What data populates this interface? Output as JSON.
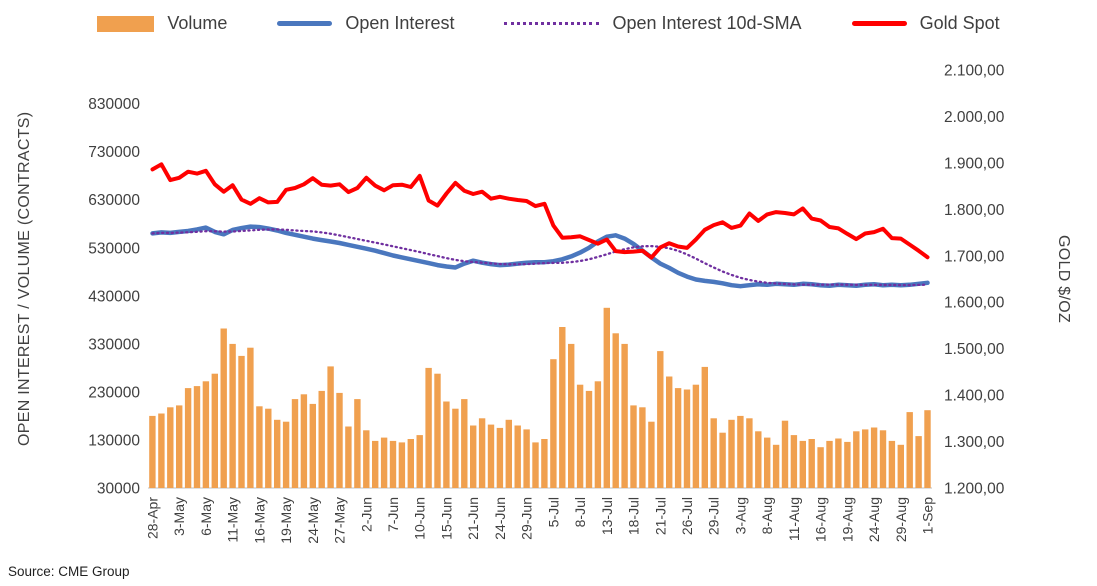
{
  "source": "Source: CME Group",
  "legend": {
    "items": [
      {
        "label": "Volume",
        "swatch": "bar",
        "color": "#F0A04F"
      },
      {
        "label": "Open Interest",
        "swatch": "line",
        "color": "#4A77BE"
      },
      {
        "label": "Open Interest 10d-SMA",
        "swatch": "dotted",
        "color": "#7030A0"
      },
      {
        "label": "Gold Spot",
        "swatch": "line",
        "color": "#FF0000"
      }
    ]
  },
  "chart_data": {
    "type": "combo (bar + line, dual axis)",
    "axes": {
      "left": {
        "title": "OPEN INTEREST / VOLUME (CONTRACTS)",
        "min": 30000,
        "max": 900000,
        "tick_values": [
          30000,
          130000,
          230000,
          330000,
          430000,
          530000,
          630000,
          730000,
          830000
        ],
        "tick_labels": [
          "30000",
          "130000",
          "230000",
          "330000",
          "430000",
          "530000",
          "630000",
          "730000",
          "830000"
        ]
      },
      "right": {
        "title": "GOLD $/OZ",
        "min": 1200,
        "max": 2100,
        "tick_values": [
          1200,
          1300,
          1400,
          1500,
          1600,
          1700,
          1800,
          1900,
          2000,
          2100
        ],
        "tick_labels": [
          "1.200,00",
          "1.300,00",
          "1.400,00",
          "1.500,00",
          "1.600,00",
          "1.700,00",
          "1.800,00",
          "1.900,00",
          "2.000,00",
          "2.100,00"
        ]
      }
    },
    "grid": "off",
    "legend_position": "top",
    "x_label_every": 3,
    "x_tick_labels": [
      "28-Apr",
      "3-May",
      "6-May",
      "11-May",
      "16-May",
      "19-May",
      "24-May",
      "27-May",
      "2-Jun",
      "7-Jun",
      "10-Jun",
      "15-Jun",
      "21-Jun",
      "24-Jun",
      "29-Jun",
      "5-Jul",
      "8-Jul",
      "13-Jul",
      "18-Jul",
      "21-Jul",
      "26-Jul",
      "29-Jul",
      "3-Aug",
      "8-Aug",
      "11-Aug",
      "16-Aug",
      "19-Aug",
      "24-Aug",
      "29-Aug",
      "1-Sep"
    ],
    "x": [
      "28-Apr",
      "29-Apr",
      "2-May",
      "3-May",
      "4-May",
      "5-May",
      "6-May",
      "9-May",
      "10-May",
      "11-May",
      "12-May",
      "13-May",
      "16-May",
      "17-May",
      "18-May",
      "19-May",
      "20-May",
      "23-May",
      "24-May",
      "25-May",
      "26-May",
      "27-May",
      "31-May",
      "1-Jun",
      "2-Jun",
      "3-Jun",
      "6-Jun",
      "7-Jun",
      "8-Jun",
      "9-Jun",
      "10-Jun",
      "13-Jun",
      "14-Jun",
      "15-Jun",
      "16-Jun",
      "17-Jun",
      "21-Jun",
      "22-Jun",
      "23-Jun",
      "24-Jun",
      "27-Jun",
      "28-Jun",
      "29-Jun",
      "30-Jun",
      "1-Jul",
      "5-Jul",
      "6-Jul",
      "7-Jul",
      "8-Jul",
      "11-Jul",
      "12-Jul",
      "13-Jul",
      "14-Jul",
      "15-Jul",
      "18-Jul",
      "19-Jul",
      "20-Jul",
      "21-Jul",
      "22-Jul",
      "25-Jul",
      "26-Jul",
      "27-Jul",
      "28-Jul",
      "29-Jul",
      "1-Aug",
      "2-Aug",
      "3-Aug",
      "4-Aug",
      "5-Aug",
      "8-Aug",
      "9-Aug",
      "10-Aug",
      "11-Aug",
      "12-Aug",
      "15-Aug",
      "16-Aug",
      "17-Aug",
      "18-Aug",
      "19-Aug",
      "22-Aug",
      "23-Aug",
      "24-Aug",
      "25-Aug",
      "26-Aug",
      "29-Aug",
      "30-Aug",
      "31-Aug",
      "1-Sep"
    ],
    "series": [
      {
        "name": "Volume",
        "type": "bar",
        "axis": "left",
        "color": "#F0A04F",
        "values": [
          180000,
          185000,
          198000,
          202000,
          238000,
          242000,
          252000,
          268000,
          362000,
          330000,
          305000,
          322000,
          200000,
          195000,
          172000,
          168000,
          215000,
          225000,
          205000,
          232000,
          283000,
          228000,
          158000,
          215000,
          150000,
          128000,
          135000,
          128000,
          125000,
          132000,
          140000,
          280000,
          268000,
          210000,
          195000,
          215000,
          160000,
          175000,
          162000,
          155000,
          172000,
          160000,
          152000,
          125000,
          132000,
          298000,
          365000,
          330000,
          245000,
          232000,
          252000,
          405000,
          352000,
          330000,
          202000,
          198000,
          168000,
          315000,
          262000,
          238000,
          235000,
          245000,
          282000,
          175000,
          145000,
          172000,
          180000,
          175000,
          148000,
          135000,
          120000,
          170000,
          140000,
          128000,
          132000,
          115000,
          128000,
          133000,
          126000,
          148000,
          152000,
          156000,
          150000,
          128000,
          120000,
          188000,
          138000,
          192000
        ]
      },
      {
        "name": "Open Interest",
        "type": "line",
        "axis": "left",
        "color": "#4A77BE",
        "values": [
          560000,
          562000,
          561000,
          563000,
          565000,
          568000,
          572000,
          563000,
          558000,
          567000,
          571000,
          574000,
          573000,
          570000,
          566000,
          561000,
          557000,
          553000,
          549000,
          546000,
          543000,
          540000,
          536000,
          532000,
          528000,
          524000,
          519000,
          514000,
          510000,
          506000,
          502000,
          498000,
          494000,
          491000,
          489000,
          497000,
          503000,
          499000,
          496000,
          494000,
          495000,
          497000,
          499000,
          500000,
          500000,
          502000,
          506000,
          512000,
          520000,
          530000,
          543000,
          553000,
          556000,
          549000,
          538000,
          524000,
          510000,
          497000,
          488000,
          478000,
          470000,
          464000,
          461000,
          459000,
          456000,
          452000,
          450000,
          452000,
          454000,
          453000,
          455000,
          454000,
          453000,
          455000,
          454000,
          452000,
          451000,
          453000,
          452000,
          451000,
          453000,
          454000,
          452000,
          453000,
          452000,
          453000,
          455000,
          457000
        ]
      },
      {
        "name": "Open Interest 10d-SMA",
        "type": "line",
        "style": "dotted",
        "axis": "left",
        "color": "#7030A0",
        "derived": "10-day rolling mean of Open Interest"
      },
      {
        "name": "Gold Spot",
        "type": "line",
        "axis": "right",
        "color": "#FF0000",
        "values": [
          1886,
          1897,
          1863,
          1868,
          1881,
          1877,
          1883,
          1854,
          1838,
          1852,
          1821,
          1812,
          1824,
          1815,
          1816,
          1842,
          1846,
          1854,
          1867,
          1853,
          1851,
          1854,
          1837,
          1846,
          1868,
          1851,
          1841,
          1852,
          1853,
          1848,
          1872,
          1819,
          1808,
          1834,
          1857,
          1840,
          1833,
          1838,
          1823,
          1827,
          1823,
          1820,
          1818,
          1807,
          1812,
          1765,
          1739,
          1740,
          1742,
          1734,
          1726,
          1735,
          1710,
          1708,
          1709,
          1711,
          1696,
          1718,
          1727,
          1720,
          1717,
          1735,
          1756,
          1766,
          1772,
          1760,
          1765,
          1791,
          1775,
          1789,
          1794,
          1792,
          1789,
          1802,
          1780,
          1776,
          1762,
          1759,
          1747,
          1736,
          1748,
          1751,
          1758,
          1738,
          1737,
          1724,
          1711,
          1697
        ]
      }
    ]
  }
}
